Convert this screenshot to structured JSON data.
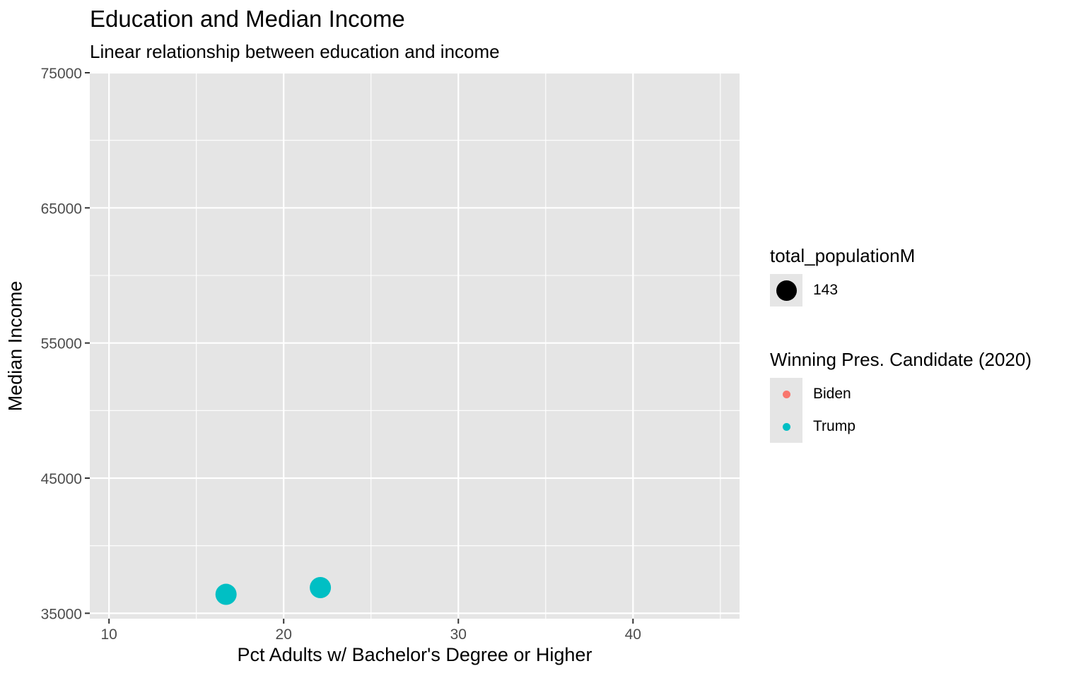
{
  "chart_data": {
    "type": "scatter",
    "title": "Education and Median Income",
    "subtitle": "Linear relationship between education and income",
    "xlabel": "Pct Adults w/ Bachelor's Degree or Higher",
    "ylabel": "Median Income",
    "xlim": [
      8.9,
      46.1
    ],
    "ylim": [
      34600,
      75000
    ],
    "x_ticks": [
      10,
      20,
      30,
      40
    ],
    "y_ticks": [
      35000,
      45000,
      55000,
      65000,
      75000
    ],
    "grid": true,
    "colors": {
      "Biden": "#F8766D",
      "Trump": "#00BFC4",
      "panel": "#E5E5E5",
      "grid": "#FFFFFF"
    },
    "points": [
      {
        "x": 16.7,
        "y": 36400,
        "group": "Trump",
        "size": 143
      },
      {
        "x": 22.1,
        "y": 36900,
        "group": "Trump",
        "size": 143
      }
    ],
    "legend_placement": "right",
    "legends": {
      "size": {
        "title": "total_populationM",
        "entries": [
          "143"
        ]
      },
      "color": {
        "title": "Winning Pres. Candidate (2020)",
        "entries": [
          "Biden",
          "Trump"
        ]
      }
    }
  }
}
